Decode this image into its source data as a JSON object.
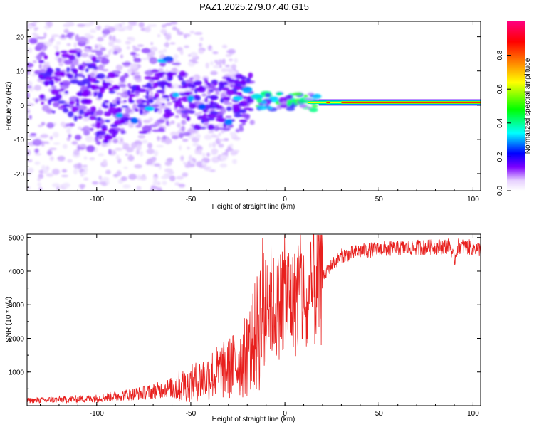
{
  "title": "PAZ1.2025.279.07.40.G15",
  "chart_data": [
    {
      "type": "heatmap",
      "xlabel": "Height of straight line (km)",
      "ylabel": "Frequency (Hz)",
      "xlim": [
        -137,
        104
      ],
      "ylim": [
        -25,
        24.5
      ],
      "xticks": [
        -100,
        -50,
        0,
        50,
        100
      ],
      "xtick_labels": [
        "-100",
        "-50",
        "0",
        "50",
        "100"
      ],
      "yticks": [
        20,
        10,
        0,
        -10,
        -20
      ],
      "ytick_labels": [
        "20",
        "10",
        "0",
        "-10",
        "-20"
      ],
      "colorbar": {
        "label": "Normalized spectral amplitude",
        "range": [
          0.0,
          1.0
        ],
        "ticks": [
          0.0,
          0.2,
          0.4,
          0.6,
          0.8
        ],
        "tick_labels": [
          "0.0",
          "0.2",
          "0.4",
          "0.6",
          "0.8"
        ],
        "colors": [
          "#ffffff",
          "#7d00ff",
          "#0000ff",
          "#00ffff",
          "#00ff00",
          "#ffff00",
          "#ff8000",
          "#ff0000",
          "#ff0080"
        ]
      },
      "description_series": {
        "band_center_hz": 0.8,
        "band_start_km": 18,
        "band_end_km": 104
      }
    },
    {
      "type": "line",
      "xlabel": "Height of straight line (km)",
      "ylabel": "SNR (10 * v/v)",
      "xlim": [
        -137,
        104
      ],
      "ylim": [
        0,
        5100
      ],
      "xticks": [
        -100,
        -50,
        0,
        50,
        100
      ],
      "xtick_labels": [
        "-100",
        "-50",
        "0",
        "50",
        "100"
      ],
      "yticks": [
        1000,
        2000,
        3000,
        4000,
        5000
      ],
      "ytick_labels": [
        "1000",
        "2000",
        "3000",
        "4000",
        "5000"
      ],
      "series": [
        {
          "name": "SNR",
          "color": "#e8201e",
          "x": [
            -137,
            -120,
            -100,
            -90,
            -80,
            -70,
            -60,
            -50,
            -40,
            -30,
            -25,
            -20,
            -15,
            -12,
            -8,
            -5,
            0,
            5,
            8,
            12,
            15,
            20,
            25,
            30,
            40,
            50,
            60,
            70,
            80,
            88,
            90,
            92,
            100,
            104
          ],
          "values": [
            150,
            180,
            220,
            280,
            350,
            420,
            550,
            650,
            900,
            1100,
            1250,
            1500,
            2100,
            2800,
            3200,
            2800,
            3300,
            3000,
            3600,
            2600,
            3600,
            3800,
            4200,
            4450,
            4600,
            4650,
            4680,
            4700,
            4720,
            4750,
            4300,
            4750,
            4700,
            4650
          ]
        }
      ]
    }
  ]
}
